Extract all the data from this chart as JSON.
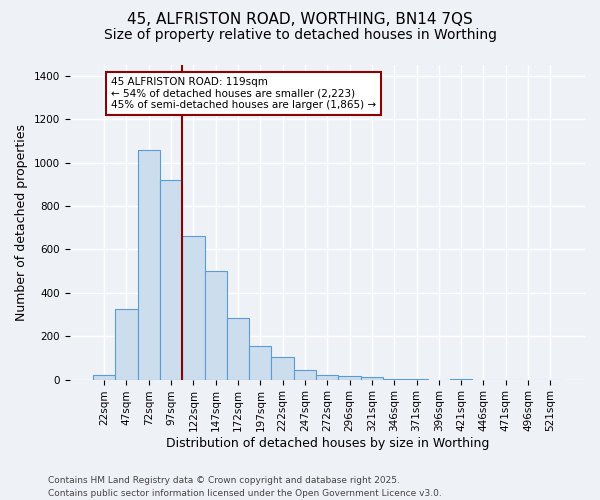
{
  "title_line1": "45, ALFRISTON ROAD, WORTHING, BN14 7QS",
  "title_line2": "Size of property relative to detached houses in Worthing",
  "xlabel": "Distribution of detached houses by size in Worthing",
  "ylabel": "Number of detached properties",
  "categories": [
    "22sqm",
    "47sqm",
    "72sqm",
    "97sqm",
    "122sqm",
    "147sqm",
    "172sqm",
    "197sqm",
    "222sqm",
    "247sqm",
    "272sqm",
    "296sqm",
    "321sqm",
    "346sqm",
    "371sqm",
    "396sqm",
    "421sqm",
    "446sqm",
    "471sqm",
    "496sqm",
    "521sqm"
  ],
  "values": [
    20,
    325,
    1060,
    920,
    660,
    500,
    285,
    155,
    105,
    45,
    20,
    18,
    12,
    5,
    2,
    0,
    1,
    0,
    0,
    0,
    0
  ],
  "bar_color": "#ccdded",
  "bar_edge_color": "#5b9bd5",
  "property_line_color": "#8b0000",
  "annotation_text": "45 ALFRISTON ROAD: 119sqm\n← 54% of detached houses are smaller (2,223)\n45% of semi-detached houses are larger (1,865) →",
  "annotation_box_color": "#ffffff",
  "annotation_box_edge_color": "#8b0000",
  "ylim": [
    0,
    1450
  ],
  "yticks": [
    0,
    200,
    400,
    600,
    800,
    1000,
    1200,
    1400
  ],
  "background_color": "#eef2f7",
  "grid_color": "#ffffff",
  "footer_text": "Contains HM Land Registry data © Crown copyright and database right 2025.\nContains public sector information licensed under the Open Government Licence v3.0.",
  "title_fontsize": 11,
  "subtitle_fontsize": 10,
  "tick_fontsize": 7.5,
  "axis_label_fontsize": 9,
  "footer_fontsize": 6.5,
  "property_line_index": 3.5
}
